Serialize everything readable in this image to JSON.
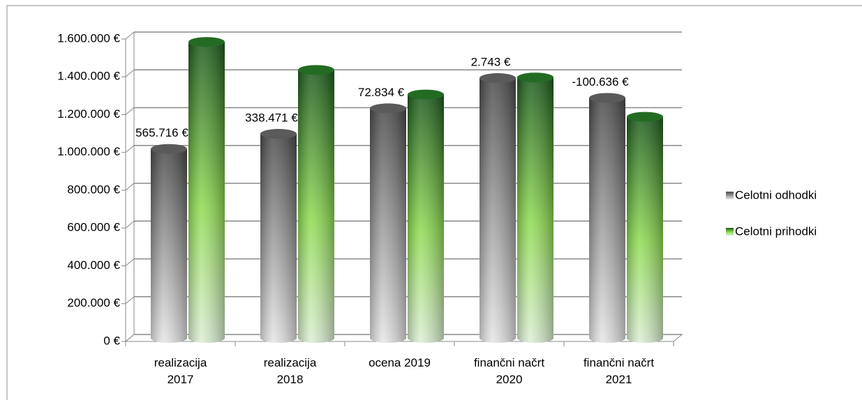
{
  "chart_data": {
    "type": "bar3d-cylinder",
    "categories": [
      "realizacija 2017",
      "realizacija 2018",
      "ocena 2019",
      "finančni načrt 2020",
      "finančni načrt 2021"
    ],
    "series": [
      {
        "name": "Celotni odhodki",
        "color": "#808080",
        "values": [
          1000000,
          1080000,
          1215000,
          1375000,
          1270000
        ]
      },
      {
        "name": "Celotni prihodki",
        "color": "#3a9a2a",
        "values": [
          1566000,
          1418000,
          1288000,
          1378000,
          1170000
        ]
      }
    ],
    "annotations": [
      "565.716 €",
      "338.471 €",
      "72.834 €",
      "2.743 €",
      "-100.636 €"
    ],
    "ylim": [
      0,
      1600000
    ],
    "yticks": [
      {
        "value": 0,
        "label": "0 €"
      },
      {
        "value": 200000,
        "label": "200.000 €"
      },
      {
        "value": 400000,
        "label": "400.000 €"
      },
      {
        "value": 600000,
        "label": "600.000 €"
      },
      {
        "value": 800000,
        "label": "800.000 €"
      },
      {
        "value": 1000000,
        "label": "1.000.000 €"
      },
      {
        "value": 1200000,
        "label": "1.200.000 €"
      },
      {
        "value": 1400000,
        "label": "1.400.000 €"
      },
      {
        "value": 1600000,
        "label": "1.600.000 €"
      }
    ],
    "grid": true,
    "legend": "right"
  }
}
